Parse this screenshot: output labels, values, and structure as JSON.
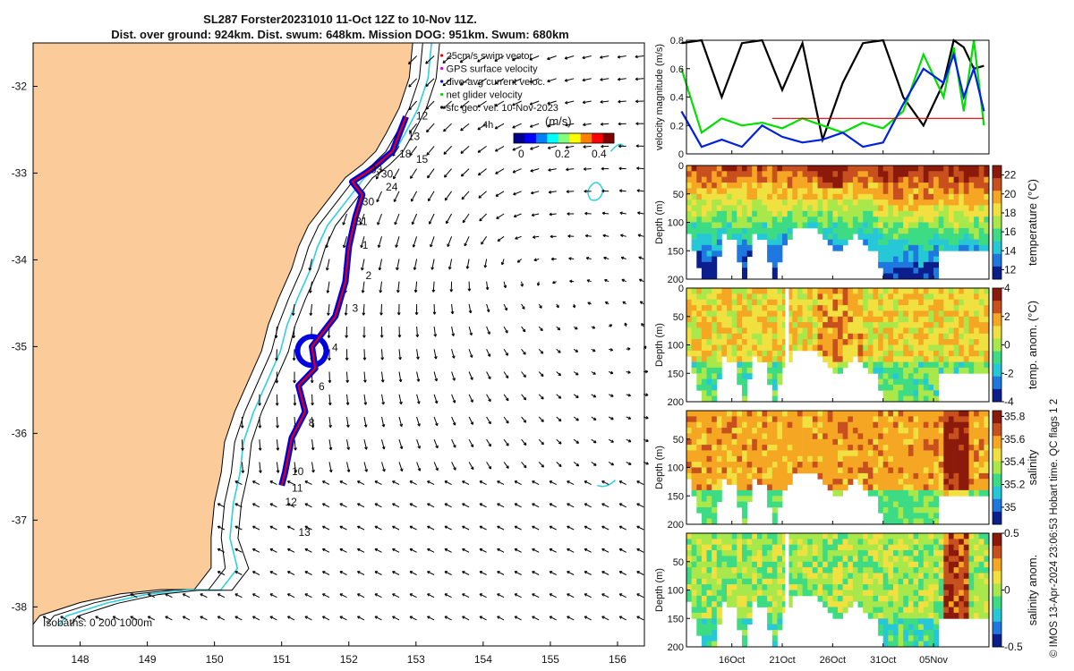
{
  "header": {
    "title_line1": "SL287 Forster20231010 11-Oct 12Z to 10-Nov 11Z.",
    "title_line2": "Dist. over ground: 924km. Dist. swum: 648km. Mission DOG: 951km. Swum: 680km"
  },
  "footer_note": "© IMOS 13-Apr-2024 23:06:53 Hobart time. QC flags 1  2",
  "colors": {
    "land": "#fbcb9a",
    "track_red": "#e00000",
    "track_blue": "#0000e0",
    "isobath_cyan": "#30d0e0",
    "velocity_black": "#000000",
    "velocity_green": "#00e000",
    "velocity_blue": "#0020e0",
    "velocity_red": "#e00000"
  },
  "map": {
    "x_ticks": [
      "148",
      "149",
      "150",
      "151",
      "152",
      "153",
      "154",
      "155",
      "156"
    ],
    "y_ticks": [
      "-32",
      "-33",
      "-34",
      "-35",
      "-36",
      "-37",
      "-38"
    ],
    "legend": [
      {
        "label": "25cm/s swim vector",
        "marker_color": "#e00000"
      },
      {
        "label": "GPS surface velocity",
        "marker_color": "#e000e0"
      },
      {
        "label": "dive-avg current veloc.",
        "marker_color": "#0000e0"
      },
      {
        "label": "net glider velocity",
        "marker_color": "#00e000"
      },
      {
        "label": "sfc geo. vel. 10-Nov-2023",
        "marker_color": "#000000"
      }
    ],
    "colorbar_label": "(m/s)",
    "colorbar_ticks": [
      "0",
      "0.2",
      "0.4"
    ],
    "small_label": "4h",
    "isobath_label": "Isobaths: 0   200  1000m",
    "day_labels": [
      {
        "text": "12",
        "lon": 153.0,
        "lat": -32.38
      },
      {
        "text": "13",
        "lon": 152.88,
        "lat": -32.62
      },
      {
        "text": "18",
        "lon": 152.75,
        "lat": -32.82
      },
      {
        "text": "15",
        "lon": 153.0,
        "lat": -32.88
      },
      {
        "text": "33",
        "lon": 152.32,
        "lat": -33.0
      },
      {
        "text": "30",
        "lon": 152.48,
        "lat": -33.05
      },
      {
        "text": "24",
        "lon": 152.55,
        "lat": -33.2
      },
      {
        "text": "30",
        "lon": 152.2,
        "lat": -33.37
      },
      {
        "text": "31",
        "lon": 152.1,
        "lat": -33.6
      },
      {
        "text": "1",
        "lon": 152.2,
        "lat": -33.87
      },
      {
        "text": "2",
        "lon": 152.25,
        "lat": -34.22
      },
      {
        "text": "3",
        "lon": 152.05,
        "lat": -34.6
      },
      {
        "text": "4",
        "lon": 151.75,
        "lat": -35.05
      },
      {
        "text": "6",
        "lon": 151.55,
        "lat": -35.5
      },
      {
        "text": "8",
        "lon": 151.4,
        "lat": -35.92
      },
      {
        "text": "10",
        "lon": 151.15,
        "lat": -36.48
      },
      {
        "text": "11",
        "lon": 151.15,
        "lat": -36.67
      },
      {
        "text": "12",
        "lon": 151.05,
        "lat": -36.83
      },
      {
        "text": "13",
        "lon": 151.25,
        "lat": -37.18
      }
    ]
  },
  "side_panels": {
    "x_ticks": [
      "16Oct",
      "21Oct",
      "26Oct",
      "31Oct",
      "05Nov"
    ],
    "velocity": {
      "ylabel": "velocity magnitude (m/s)",
      "y_ticks": [
        "0",
        "0.2",
        "0.4",
        "0.6",
        "0.8"
      ]
    },
    "temperature": {
      "ylabel": "Depth (m)",
      "cbar_label": "temperature (°C)",
      "cbar_ticks": [
        "12",
        "14",
        "16",
        "18",
        "20",
        "22"
      ],
      "y_ticks": [
        "0",
        "50",
        "100",
        "150",
        "200"
      ]
    },
    "temp_anom": {
      "ylabel": "Depth (m)",
      "cbar_label": "temp. anom. (°C)",
      "cbar_ticks": [
        "-4",
        "-2",
        "0",
        "2",
        "4"
      ],
      "y_ticks": [
        "0",
        "50",
        "100",
        "150",
        "200"
      ]
    },
    "salinity": {
      "ylabel": "Depth (m)",
      "cbar_label": "salinity",
      "cbar_ticks": [
        "35",
        "35.2",
        "35.4",
        "35.6",
        "35.8"
      ],
      "y_ticks": [
        "50",
        "100",
        "150",
        "200"
      ]
    },
    "sal_anom": {
      "ylabel": "Depth (m)",
      "cbar_label": "salinity anom.",
      "cbar_ticks": [
        "-0.5",
        "0",
        "0.5"
      ],
      "y_ticks": [
        "50",
        "100",
        "150",
        "200"
      ]
    }
  },
  "chart_data": [
    {
      "type": "scatter",
      "title": "SL287 Forster20231010 11-Oct 12Z to 10-Nov 11Z.",
      "xlabel": "",
      "ylabel": "",
      "xlim": [
        147.3,
        156.4
      ],
      "ylim": [
        -38.45,
        -31.5
      ],
      "series": [
        {
          "name": "glider track",
          "points": [
            [
              152.85,
              -32.35
            ],
            [
              152.65,
              -32.75
            ],
            [
              152.35,
              -32.95
            ],
            [
              152.05,
              -33.1
            ],
            [
              152.2,
              -33.25
            ],
            [
              152.1,
              -33.5
            ],
            [
              152.0,
              -33.85
            ],
            [
              151.95,
              -34.25
            ],
            [
              151.8,
              -34.65
            ],
            [
              151.45,
              -35.0
            ],
            [
              151.5,
              -35.25
            ],
            [
              151.25,
              -35.45
            ],
            [
              151.35,
              -35.75
            ],
            [
              151.15,
              -36.05
            ],
            [
              151.05,
              -36.45
            ],
            [
              151.0,
              -36.6
            ]
          ]
        }
      ]
    },
    {
      "type": "line",
      "title": "",
      "xlabel": "",
      "ylabel": "velocity magnitude (m/s)",
      "x_ticks": [
        "16Oct",
        "21Oct",
        "26Oct",
        "31Oct",
        "05Nov"
      ],
      "ylim": [
        0,
        0.8
      ],
      "series": [
        {
          "name": "surface velocity (black)",
          "color": "#000000",
          "x": [
            11,
            13,
            15,
            17,
            19,
            21,
            23,
            25,
            27,
            29,
            31,
            33,
            35,
            37,
            38,
            39,
            40,
            41
          ],
          "values": [
            0.78,
            0.82,
            0.4,
            0.78,
            0.82,
            0.45,
            0.78,
            0.1,
            0.5,
            0.78,
            0.8,
            0.4,
            0.2,
            0.5,
            0.8,
            0.75,
            0.6,
            0.62
          ]
        },
        {
          "name": "net glider velocity (green)",
          "color": "#00e000",
          "x": [
            11,
            13,
            15,
            17,
            19,
            21,
            23,
            25,
            27,
            29,
            31,
            33,
            35,
            37,
            38,
            39,
            40,
            41
          ],
          "values": [
            0.6,
            0.15,
            0.25,
            0.2,
            0.22,
            0.18,
            0.25,
            0.2,
            0.15,
            0.22,
            0.18,
            0.3,
            0.7,
            0.4,
            0.75,
            0.3,
            0.8,
            0.2
          ]
        },
        {
          "name": "dive-avg current (blue)",
          "color": "#0020e0",
          "x": [
            11,
            13,
            15,
            17,
            19,
            21,
            23,
            25,
            27,
            29,
            31,
            33,
            35,
            37,
            38,
            39,
            40,
            41
          ],
          "values": [
            0.3,
            0.05,
            0.1,
            0.05,
            0.2,
            0.12,
            0.08,
            0.1,
            0.15,
            0.05,
            0.08,
            0.35,
            0.6,
            0.5,
            0.7,
            0.4,
            0.6,
            0.3
          ]
        },
        {
          "name": "swim speed (red)",
          "color": "#e00000",
          "x": [
            20,
            41
          ],
          "values": [
            0.25,
            0.25
          ]
        }
      ]
    },
    {
      "type": "heatmap",
      "title": "",
      "ylabel": "Depth (m)",
      "cbar_label": "temperature (°C)",
      "ylim": [
        200,
        0
      ],
      "clim": [
        11,
        23
      ],
      "x_ticks": [
        "16Oct",
        "21Oct",
        "26Oct",
        "31Oct",
        "05Nov"
      ],
      "surface_to_depth_profile": [
        22,
        20,
        18,
        16,
        14
      ]
    },
    {
      "type": "heatmap",
      "title": "",
      "ylabel": "Depth (m)",
      "cbar_label": "temp. anom. (°C)",
      "ylim": [
        200,
        0
      ],
      "clim": [
        -4,
        4
      ],
      "x_ticks": [
        "16Oct",
        "21Oct",
        "26Oct",
        "31Oct",
        "05Nov"
      ]
    },
    {
      "type": "heatmap",
      "title": "",
      "ylabel": "Depth (m)",
      "cbar_label": "salinity",
      "ylim": [
        200,
        0
      ],
      "clim": [
        34.85,
        35.85
      ],
      "x_ticks": [
        "16Oct",
        "21Oct",
        "26Oct",
        "31Oct",
        "05Nov"
      ]
    },
    {
      "type": "heatmap",
      "title": "",
      "ylabel": "Depth (m)",
      "cbar_label": "salinity anom.",
      "ylim": [
        200,
        0
      ],
      "clim": [
        -0.5,
        0.5
      ],
      "x_ticks": [
        "16Oct",
        "21Oct",
        "26Oct",
        "31Oct",
        "05Nov"
      ]
    }
  ]
}
